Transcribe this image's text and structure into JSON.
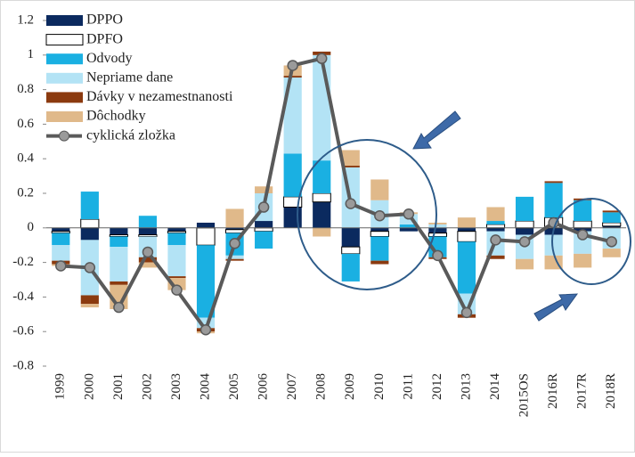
{
  "chart_data": {
    "type": "bar",
    "stacked": true,
    "categories": [
      "1999",
      "2000",
      "2001",
      "2002",
      "2003",
      "2004",
      "2005",
      "2006",
      "2007",
      "2008",
      "2009",
      "2010",
      "2011",
      "2012",
      "2013",
      "2014",
      "2015OS",
      "2016R",
      "2017R",
      "2018R"
    ],
    "series": [
      {
        "name": "DPPO",
        "color": "#0b2a5f",
        "values": [
          -0.02,
          -0.07,
          -0.04,
          -0.04,
          -0.02,
          0.03,
          -0.01,
          0.04,
          0.12,
          0.15,
          -0.11,
          -0.02,
          -0.02,
          -0.03,
          -0.02,
          -0.02,
          -0.04,
          -0.04,
          -0.02,
          0.01
        ]
      },
      {
        "name": "DPFO",
        "color": "#ffffff",
        "values": [
          -0.01,
          0.05,
          -0.01,
          -0.01,
          -0.01,
          -0.1,
          -0.02,
          -0.02,
          0.06,
          0.05,
          -0.04,
          -0.03,
          0.0,
          -0.02,
          -0.06,
          0.02,
          0.04,
          0.06,
          0.04,
          0.02
        ]
      },
      {
        "name": "Odvody",
        "color": "#1ab0e2",
        "values": [
          -0.07,
          0.16,
          -0.06,
          0.07,
          -0.07,
          -0.42,
          -0.13,
          -0.1,
          0.25,
          0.19,
          -0.16,
          -0.14,
          0.02,
          -0.12,
          -0.3,
          0.02,
          0.14,
          0.2,
          0.12,
          0.06
        ]
      },
      {
        "name": "Nepriame dane",
        "color": "#b3e3f5",
        "values": [
          -0.09,
          -0.32,
          -0.2,
          -0.12,
          -0.18,
          -0.06,
          -0.02,
          0.16,
          0.44,
          0.61,
          0.35,
          0.16,
          0.06,
          0.02,
          -0.12,
          -0.14,
          -0.14,
          -0.12,
          -0.13,
          -0.12
        ]
      },
      {
        "name": "Dávky v nezamestnanosti",
        "color": "#8b3a0f",
        "values": [
          -0.02,
          -0.05,
          -0.02,
          -0.03,
          -0.01,
          -0.02,
          -0.01,
          0.0,
          0.01,
          0.02,
          0.01,
          -0.02,
          0.0,
          -0.01,
          -0.02,
          -0.02,
          0.0,
          0.01,
          0.01,
          0.01
        ]
      },
      {
        "name": "Dôchodky",
        "color": "#e0b98a",
        "values": [
          -0.01,
          -0.02,
          -0.14,
          -0.03,
          -0.07,
          -0.01,
          0.11,
          0.04,
          0.06,
          -0.05,
          0.09,
          0.12,
          0.01,
          0.01,
          0.06,
          0.08,
          -0.06,
          -0.08,
          -0.08,
          -0.05
        ]
      },
      {
        "name": "cyklická zložka",
        "color": "#5a5a5a",
        "type": "line",
        "values": [
          -0.22,
          -0.23,
          -0.46,
          -0.14,
          -0.36,
          -0.59,
          -0.09,
          0.12,
          0.94,
          0.98,
          0.14,
          0.07,
          0.08,
          -0.16,
          -0.49,
          -0.07,
          -0.08,
          0.03,
          -0.04,
          -0.08
        ]
      }
    ],
    "ylim": [
      -0.8,
      1.2
    ],
    "yticks": [
      -0.8,
      -0.6,
      -0.4,
      -0.2,
      0,
      0.2,
      0.4,
      0.6,
      0.8,
      1,
      1.2
    ],
    "legend": "upper left"
  }
}
